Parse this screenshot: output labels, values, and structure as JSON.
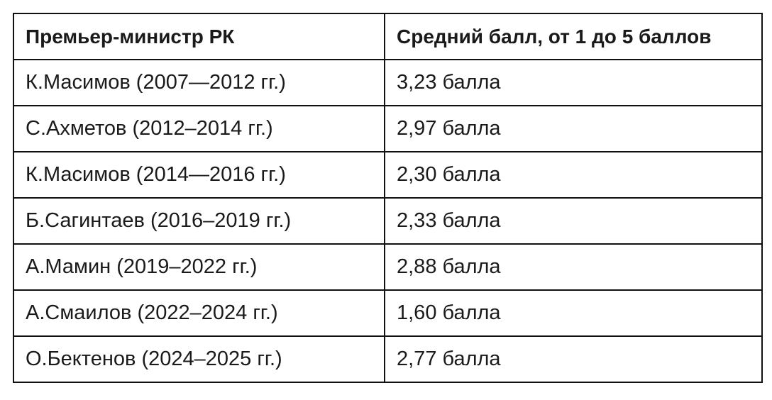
{
  "table": {
    "headers": [
      "Премьер-министр РК",
      "Средний балл, от 1 до 5 баллов"
    ],
    "rows": [
      [
        "К.Масимов (2007—2012 гг.)",
        "3,23 балла"
      ],
      [
        "С.Ахметов (2012–2014 гг.)",
        "2,97 балла"
      ],
      [
        "К.Масимов (2014—2016 гг.)",
        "2,30 балла"
      ],
      [
        "Б.Сагинтаев (2016–2019 гг.)",
        "2,33 балла"
      ],
      [
        "А.Мамин (2019–2022 гг.)",
        "2,88 балла"
      ],
      [
        "А.Смаилов (2022–2024 гг.)",
        "1,60 балла"
      ],
      [
        "О.Бектенов (2024–2025 гг.)",
        "2,77 балла"
      ]
    ]
  }
}
